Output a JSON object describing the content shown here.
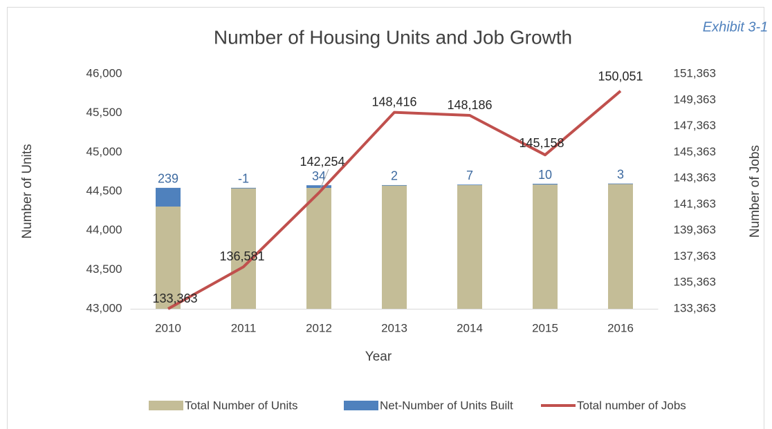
{
  "chart_data": {
    "type": "bar",
    "title": "Number of Housing Units and Job Growth",
    "annotation": "Exhibit 3-1",
    "x_label": "Year",
    "y_label": "Number of Units",
    "y2_label": "Number of Jobs",
    "categories": [
      "2010",
      "2011",
      "2012",
      "2013",
      "2014",
      "2015",
      "2016"
    ],
    "stacked": true,
    "series": [
      {
        "name": "Total Number of Units",
        "color": "#c4bd97",
        "values": [
          44306,
          44545,
          44544,
          44578,
          44580,
          44587,
          44597
        ]
      },
      {
        "name": "Net-Number of Units Built",
        "color": "#4f81bd",
        "values": [
          239,
          -1,
          34,
          2,
          7,
          10,
          3
        ]
      },
      {
        "name": "Total number of Jobs",
        "color": "#c0504d",
        "type": "line",
        "axis": "y2",
        "values": [
          133363,
          136581,
          142254,
          148416,
          148186,
          145158,
          150051
        ],
        "value_labels": [
          "133,363",
          "136,581",
          "142,254",
          "148,416",
          "148,186",
          "145,158",
          "150,051"
        ]
      }
    ],
    "ylim": [
      43000,
      46000
    ],
    "yticks": [
      {
        "value": 43000,
        "label": "43,000"
      },
      {
        "value": 43500,
        "label": "43,500"
      },
      {
        "value": 44000,
        "label": "44,000"
      },
      {
        "value": 44500,
        "label": "44,500"
      },
      {
        "value": 45000,
        "label": "45,000"
      },
      {
        "value": 45500,
        "label": "45,500"
      },
      {
        "value": 46000,
        "label": "46,000"
      }
    ],
    "y2lim": [
      133363,
      151363
    ],
    "y2ticks": [
      {
        "value": 133363,
        "label": "133,363"
      },
      {
        "value": 135363,
        "label": "135,363"
      },
      {
        "value": 137363,
        "label": "137,363"
      },
      {
        "value": 139363,
        "label": "139,363"
      },
      {
        "value": 141363,
        "label": "141,363"
      },
      {
        "value": 143363,
        "label": "143,363"
      },
      {
        "value": 145363,
        "label": "145,363"
      },
      {
        "value": 147363,
        "label": "147,363"
      },
      {
        "value": 149363,
        "label": "149,363"
      },
      {
        "value": 151363,
        "label": "151,363"
      }
    ],
    "grid": false,
    "legend": "bottom"
  }
}
